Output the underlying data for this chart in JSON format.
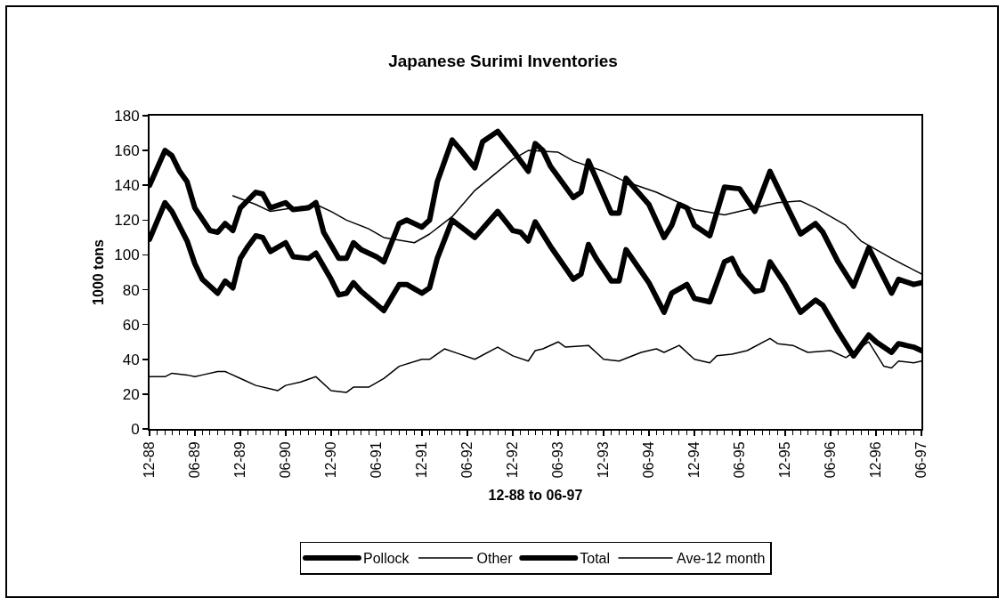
{
  "chart_data": {
    "type": "line",
    "title": "Japanese Surimi Inventories",
    "xlabel": "12-88 to 06-97",
    "ylabel": "1000 tons",
    "xlim": [
      "1988-12",
      "1997-06"
    ],
    "xticks": [
      {
        "value": "1988-12",
        "label": "12-88"
      },
      {
        "value": "1989-06",
        "label": "06-89"
      },
      {
        "value": "1989-12",
        "label": "12-89"
      },
      {
        "value": "1990-06",
        "label": "06-90"
      },
      {
        "value": "1990-12",
        "label": "12-90"
      },
      {
        "value": "1991-06",
        "label": "06-91"
      },
      {
        "value": "1991-12",
        "label": "12-91"
      },
      {
        "value": "1992-06",
        "label": "06-92"
      },
      {
        "value": "1992-12",
        "label": "12-92"
      },
      {
        "value": "1993-06",
        "label": "06-93"
      },
      {
        "value": "1993-12",
        "label": "12-93"
      },
      {
        "value": "1994-06",
        "label": "06-94"
      },
      {
        "value": "1994-12",
        "label": "12-94"
      },
      {
        "value": "1995-06",
        "label": "06-95"
      },
      {
        "value": "1995-12",
        "label": "12-95"
      },
      {
        "value": "1996-06",
        "label": "06-96"
      },
      {
        "value": "1996-12",
        "label": "12-96"
      },
      {
        "value": "1997-06",
        "label": "06-97"
      }
    ],
    "ylim": [
      0,
      180
    ],
    "yticks": [
      0,
      20,
      40,
      60,
      80,
      100,
      120,
      140,
      160,
      180
    ],
    "grid": false,
    "legend": "bottom",
    "marker": "none",
    "line_style": "solid",
    "series": [
      {
        "name": "Pollock",
        "color": "#000000",
        "x": [
          "1988-12",
          "1989-02",
          "1989-03",
          "1989-05",
          "1989-06",
          "1989-07",
          "1989-09",
          "1989-10",
          "1989-11",
          "1989-12",
          "1990-01",
          "1990-02",
          "1990-03",
          "1990-04",
          "1990-06",
          "1990-07",
          "1990-09",
          "1990-10",
          "1990-12",
          "1991-01",
          "1991-02",
          "1991-03",
          "1991-04",
          "1991-07",
          "1991-09",
          "1991-10",
          "1991-12",
          "1992-01",
          "1992-02",
          "1992-04",
          "1992-07",
          "1992-10",
          "1992-12",
          "1993-01",
          "1993-02",
          "1993-03",
          "1993-05",
          "1993-08",
          "1993-09",
          "1993-10",
          "1993-11",
          "1994-01",
          "1994-02",
          "1994-03",
          "1994-06",
          "1994-08",
          "1994-09",
          "1994-11",
          "1994-12",
          "1995-02",
          "1995-04",
          "1995-05",
          "1995-06",
          "1995-08",
          "1995-09",
          "1995-10",
          "1995-12",
          "1996-02",
          "1996-04",
          "1996-05",
          "1996-07",
          "1996-09",
          "1996-11",
          "1996-12",
          "1997-02",
          "1997-03",
          "1997-05",
          "1997-06"
        ],
        "values": [
          109,
          130,
          125,
          108,
          95,
          86,
          78,
          85,
          81,
          98,
          105,
          111,
          110,
          102,
          107,
          99,
          98,
          101,
          86,
          77,
          78,
          84,
          79,
          68,
          83,
          83,
          78,
          81,
          98,
          120,
          110,
          125,
          114,
          113,
          108,
          119,
          105,
          86,
          89,
          106,
          98,
          85,
          85,
          103,
          84,
          67,
          78,
          83,
          75,
          73,
          96,
          98,
          89,
          79,
          80,
          96,
          83,
          67,
          74,
          71,
          56,
          42,
          54,
          50,
          44,
          49,
          47,
          45
        ]
      },
      {
        "name": "Other",
        "color": "#000000",
        "x": [
          "1988-12",
          "1989-02",
          "1989-03",
          "1989-05",
          "1989-06",
          "1989-07",
          "1989-09",
          "1989-10",
          "1989-12",
          "1990-02",
          "1990-05",
          "1990-06",
          "1990-08",
          "1990-10",
          "1990-12",
          "1991-02",
          "1991-03",
          "1991-05",
          "1991-07",
          "1991-09",
          "1991-12",
          "1992-01",
          "1992-03",
          "1992-05",
          "1992-07",
          "1992-10",
          "1992-12",
          "1993-02",
          "1993-03",
          "1993-04",
          "1993-06",
          "1993-07",
          "1993-10",
          "1993-12",
          "1994-02",
          "1994-05",
          "1994-07",
          "1994-08",
          "1994-10",
          "1994-12",
          "1995-02",
          "1995-03",
          "1995-05",
          "1995-07",
          "1995-10",
          "1995-11",
          "1996-01",
          "1996-03",
          "1996-06",
          "1996-08",
          "1996-11",
          "1997-01",
          "1997-02",
          "1997-03",
          "1997-05",
          "1997-06"
        ],
        "values": [
          30,
          30,
          32,
          31,
          30,
          31,
          33,
          33,
          29,
          25,
          22,
          25,
          27,
          30,
          22,
          21,
          24,
          24,
          29,
          36,
          40,
          40,
          46,
          43,
          40,
          47,
          42,
          39,
          45,
          46,
          50,
          47,
          48,
          40,
          39,
          44,
          46,
          44,
          48,
          40,
          38,
          42,
          43,
          45,
          52,
          49,
          48,
          44,
          45,
          41,
          50,
          36,
          35,
          39,
          38,
          39
        ]
      },
      {
        "name": "Total",
        "color": "#000000",
        "x": [
          "1988-12",
          "1989-02",
          "1989-03",
          "1989-04",
          "1989-05",
          "1989-06",
          "1989-08",
          "1989-09",
          "1989-10",
          "1989-11",
          "1989-12",
          "1990-02",
          "1990-03",
          "1990-04",
          "1990-06",
          "1990-07",
          "1990-09",
          "1990-10",
          "1990-11",
          "1991-01",
          "1991-02",
          "1991-03",
          "1991-04",
          "1991-06",
          "1991-07",
          "1991-09",
          "1991-10",
          "1991-12",
          "1992-01",
          "1992-02",
          "1992-04",
          "1992-05",
          "1992-07",
          "1992-08",
          "1992-10",
          "1992-12",
          "1993-02",
          "1993-03",
          "1993-04",
          "1993-05",
          "1993-08",
          "1993-09",
          "1993-10",
          "1994-01",
          "1994-02",
          "1994-03",
          "1994-06",
          "1994-08",
          "1994-09",
          "1994-10",
          "1994-11",
          "1994-12",
          "1995-02",
          "1995-04",
          "1995-06",
          "1995-08",
          "1995-10",
          "1995-12",
          "1996-02",
          "1996-04",
          "1996-05",
          "1996-07",
          "1996-09",
          "1996-11",
          "1997-02",
          "1997-03",
          "1997-05",
          "1997-06"
        ],
        "values": [
          140,
          160,
          157,
          148,
          142,
          127,
          114,
          113,
          118,
          114,
          127,
          136,
          135,
          127,
          130,
          126,
          127,
          130,
          113,
          98,
          98,
          107,
          103,
          99,
          96,
          118,
          120,
          116,
          120,
          142,
          166,
          161,
          150,
          165,
          171,
          160,
          148,
          164,
          160,
          151,
          133,
          136,
          154,
          124,
          124,
          144,
          129,
          110,
          117,
          129,
          127,
          117,
          111,
          139,
          138,
          125,
          148,
          130,
          112,
          118,
          113,
          96,
          82,
          104,
          78,
          86,
          83,
          84
        ]
      },
      {
        "name": "Ave-12 month",
        "color": "#000000",
        "x": [
          "1989-11",
          "1990-02",
          "1990-04",
          "1990-10",
          "1990-12",
          "1991-02",
          "1991-05",
          "1991-07",
          "1991-11",
          "1992-01",
          "1992-04",
          "1992-07",
          "1992-12",
          "1993-02",
          "1993-06",
          "1993-08",
          "1993-12",
          "1994-03",
          "1994-07",
          "1994-10",
          "1994-12",
          "1995-04",
          "1995-07",
          "1995-11",
          "1996-02",
          "1996-04",
          "1996-08",
          "1996-10",
          "1997-02",
          "1997-06"
        ],
        "values": [
          134,
          129,
          125,
          129,
          125,
          120,
          115,
          110,
          107,
          112,
          122,
          137,
          155,
          160,
          159,
          154,
          148,
          142,
          136,
          130,
          126,
          123,
          126,
          130,
          131,
          127,
          117,
          108,
          98,
          89
        ]
      }
    ]
  }
}
